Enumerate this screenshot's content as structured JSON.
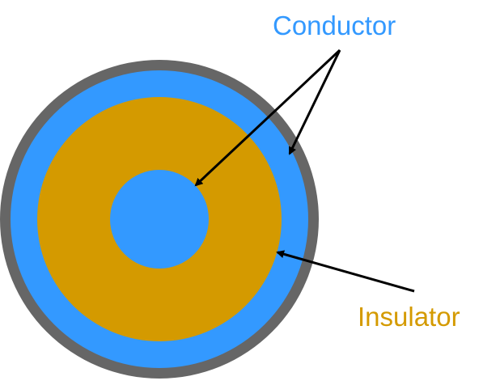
{
  "labels": {
    "conductor": "Conductor",
    "insulator": "Insulator"
  },
  "colors": {
    "outer_jacket": "#666666",
    "conductor": "#3399ff",
    "insulator": "#d49a00",
    "arrow": "#000000",
    "background": "#ffffff"
  }
}
